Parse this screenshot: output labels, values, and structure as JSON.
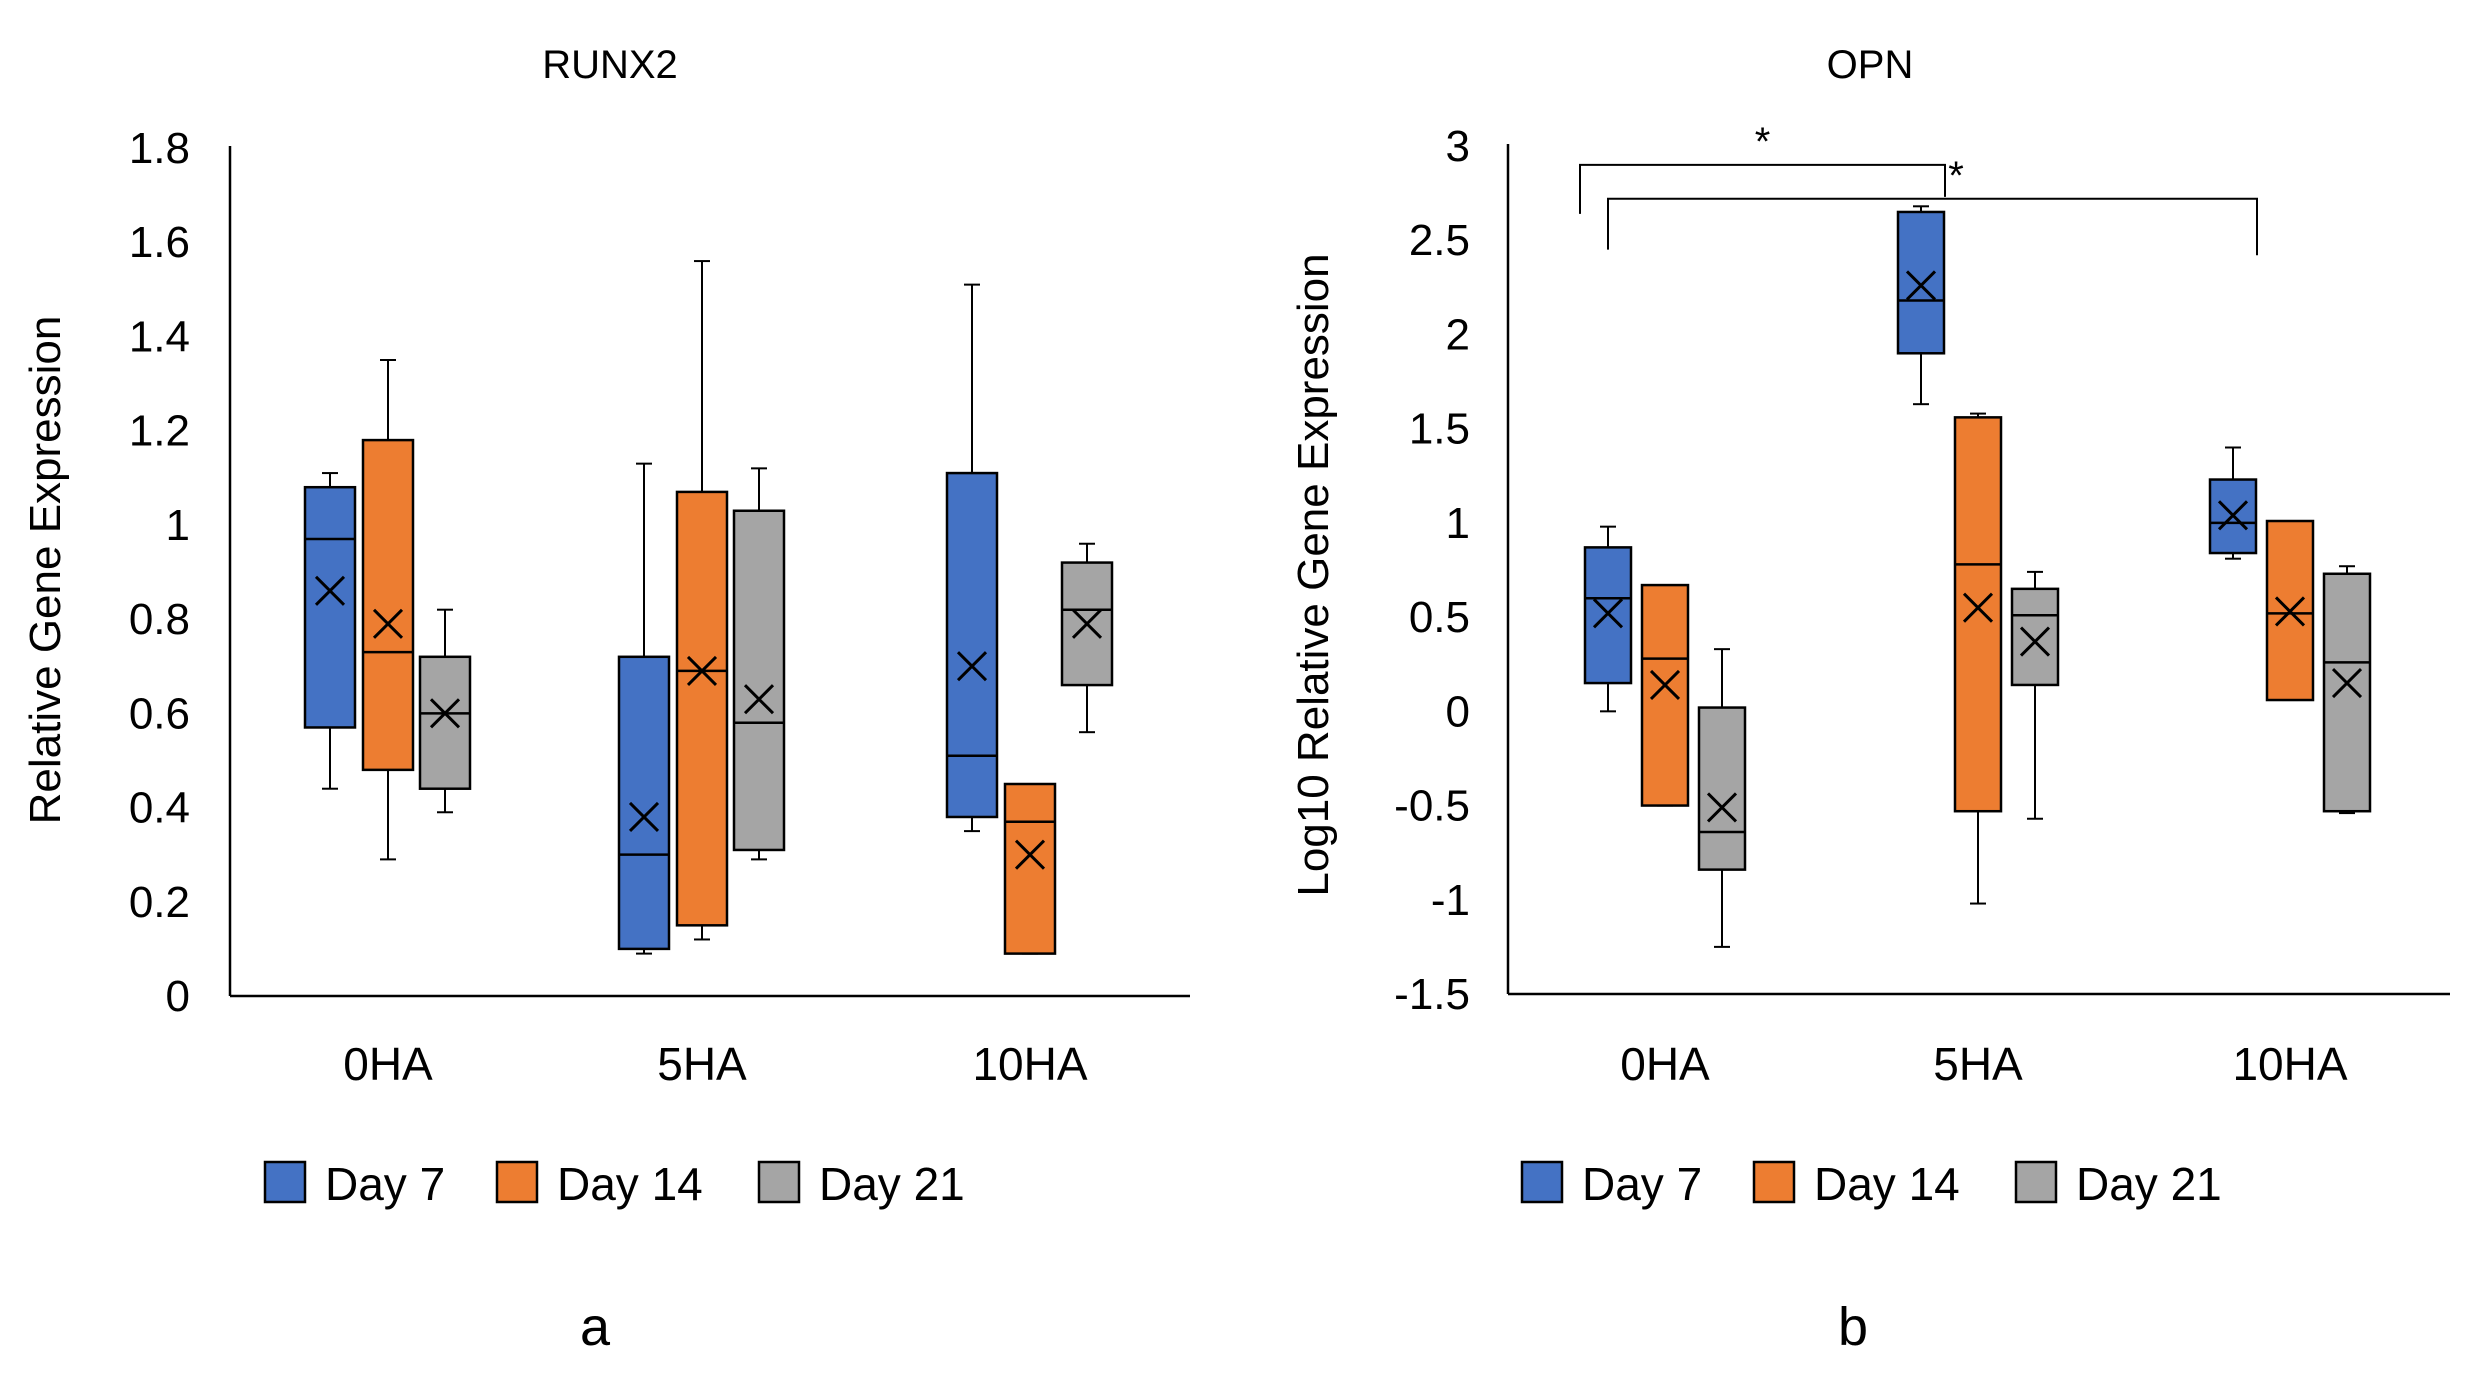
{
  "chart_data": [
    {
      "type": "box",
      "title": "RUNX2",
      "xlabel": "",
      "ylabel": "Relative Gene Expression",
      "ylim": [
        0,
        1.8
      ],
      "yticks": [
        0,
        0.2,
        0.4,
        0.6,
        0.8,
        1,
        1.2,
        1.4,
        1.6,
        1.8
      ],
      "ytick_labels": [
        "0",
        "0.2",
        "0.4",
        "0.6",
        "0.8",
        "1",
        "1.2",
        "1.4",
        "1.6",
        "1.8"
      ],
      "categories": [
        "0HA",
        "5HA",
        "10HA"
      ],
      "panel_label": "a",
      "legend": [
        "Day 7",
        "Day 14",
        "Day 21"
      ],
      "series": [
        {
          "name": "Day 7",
          "color": "#4472C4",
          "boxes": [
            {
              "min": 0.44,
              "q1": 0.57,
              "median": 0.97,
              "q3": 1.08,
              "max": 1.11,
              "mean": 0.86
            },
            {
              "min": 0.09,
              "q1": 0.1,
              "median": 0.3,
              "q3": 0.72,
              "max": 1.13,
              "mean": 0.38
            },
            {
              "min": 0.35,
              "q1": 0.38,
              "median": 0.51,
              "q3": 1.11,
              "max": 1.51,
              "mean": 0.7
            }
          ]
        },
        {
          "name": "Day 14",
          "color": "#ED7D31",
          "boxes": [
            {
              "min": 0.29,
              "q1": 0.48,
              "median": 0.73,
              "q3": 1.18,
              "max": 1.35,
              "mean": 0.79
            },
            {
              "min": 0.12,
              "q1": 0.15,
              "median": 0.69,
              "q3": 1.07,
              "max": 1.56,
              "mean": 0.69
            },
            {
              "min": 0.09,
              "q1": 0.09,
              "median": 0.37,
              "q3": 0.45,
              "max": 0.45,
              "mean": 0.3
            }
          ]
        },
        {
          "name": "Day 21",
          "color": "#A5A5A5",
          "boxes": [
            {
              "min": 0.39,
              "q1": 0.44,
              "median": 0.6,
              "q3": 0.72,
              "max": 0.82,
              "mean": 0.6
            },
            {
              "min": 0.29,
              "q1": 0.31,
              "median": 0.58,
              "q3": 1.03,
              "max": 1.12,
              "mean": 0.63
            },
            {
              "min": 0.56,
              "q1": 0.66,
              "median": 0.82,
              "q3": 0.92,
              "max": 0.96,
              "mean": 0.79
            }
          ]
        }
      ]
    },
    {
      "type": "box",
      "title": "OPN",
      "xlabel": "",
      "ylabel": "Log10 Relative Gene Expression",
      "ylim": [
        -1.5,
        3
      ],
      "yticks": [
        -1.5,
        -1,
        -0.5,
        0,
        0.5,
        1,
        1.5,
        2,
        2.5,
        3
      ],
      "ytick_labels": [
        "-1.5",
        "-1",
        "-0.5",
        "0",
        "0.5",
        "1",
        "1.5",
        "2",
        "2.5",
        "3"
      ],
      "categories": [
        "0HA",
        "5HA",
        "10HA"
      ],
      "panel_label": "b",
      "legend": [
        "Day 7",
        "Day 14",
        "Day 21"
      ],
      "significance": [
        {
          "label": "*",
          "from": "0HA",
          "to": "5HA",
          "y": 2.9
        },
        {
          "label": "*",
          "from": "0HA",
          "to": "10HA",
          "y": 2.72
        }
      ],
      "series": [
        {
          "name": "Day 7",
          "color": "#4472C4",
          "boxes": [
            {
              "min": 0.0,
              "q1": 0.15,
              "median": 0.6,
              "q3": 0.87,
              "max": 0.98,
              "mean": 0.52
            },
            {
              "min": 1.63,
              "q1": 1.9,
              "median": 2.18,
              "q3": 2.65,
              "max": 2.68,
              "mean": 2.26
            },
            {
              "min": 0.81,
              "q1": 0.84,
              "median": 1.0,
              "q3": 1.23,
              "max": 1.4,
              "mean": 1.04
            }
          ]
        },
        {
          "name": "Day 14",
          "color": "#ED7D31",
          "boxes": [
            {
              "min": -0.5,
              "q1": -0.5,
              "median": 0.28,
              "q3": 0.67,
              "max": 0.67,
              "mean": 0.14
            },
            {
              "min": -1.02,
              "q1": -0.53,
              "median": 0.78,
              "q3": 1.56,
              "max": 1.58,
              "mean": 0.55
            },
            {
              "min": 0.06,
              "q1": 0.06,
              "median": 0.52,
              "q3": 1.01,
              "max": 1.01,
              "mean": 0.53
            }
          ]
        },
        {
          "name": "Day 21",
          "color": "#A5A5A5",
          "boxes": [
            {
              "min": -1.25,
              "q1": -0.84,
              "median": -0.64,
              "q3": 0.02,
              "max": 0.33,
              "mean": -0.51
            },
            {
              "min": -0.57,
              "q1": 0.14,
              "median": 0.51,
              "q3": 0.65,
              "max": 0.74,
              "mean": 0.37
            },
            {
              "min": -0.54,
              "q1": -0.53,
              "median": 0.26,
              "q3": 0.73,
              "max": 0.77,
              "mean": 0.15
            }
          ]
        }
      ]
    }
  ]
}
